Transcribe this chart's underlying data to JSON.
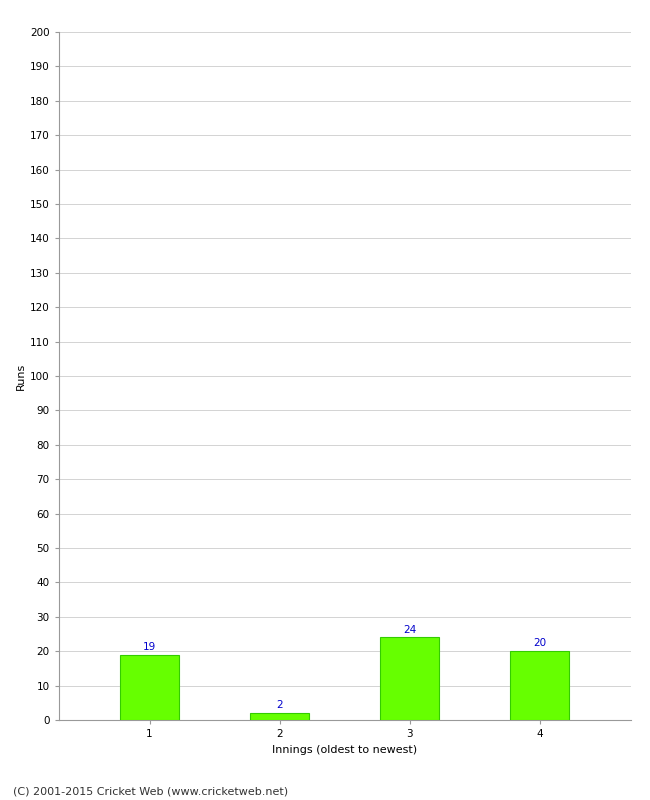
{
  "categories": [
    "1",
    "2",
    "3",
    "4"
  ],
  "values": [
    19,
    2,
    24,
    20
  ],
  "bar_color": "#66ff00",
  "bar_edgecolor": "#33cc00",
  "xlabel": "Innings (oldest to newest)",
  "ylabel": "Runs",
  "ylim": [
    0,
    200
  ],
  "yticks": [
    0,
    10,
    20,
    30,
    40,
    50,
    60,
    70,
    80,
    90,
    100,
    110,
    120,
    130,
    140,
    150,
    160,
    170,
    180,
    190,
    200
  ],
  "background_color": "#ffffff",
  "grid_color": "#cccccc",
  "label_color": "#0000cc",
  "footer": "(C) 2001-2015 Cricket Web (www.cricketweb.net)",
  "label_fontsize": 7.5,
  "axis_tick_fontsize": 7.5,
  "axis_label_fontsize": 8,
  "footer_fontsize": 8,
  "bar_width": 0.45
}
